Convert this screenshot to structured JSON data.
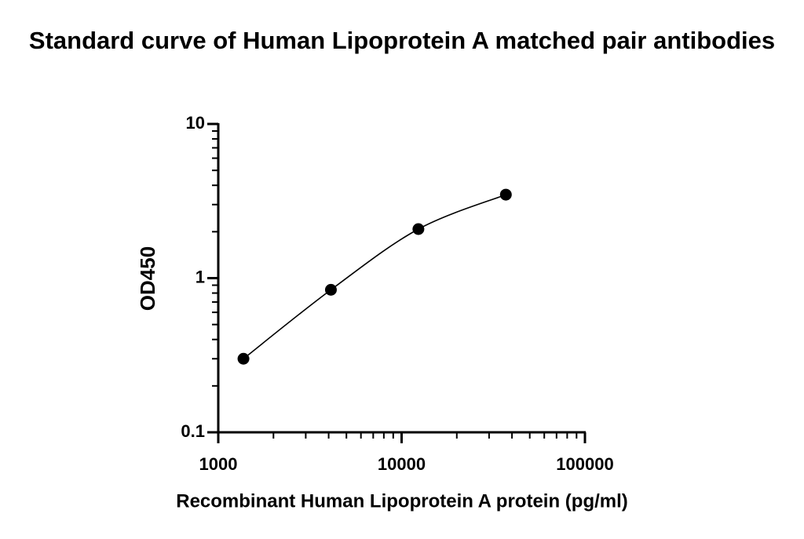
{
  "chart_data": {
    "type": "scatter",
    "title": "Standard curve of Human Lipoprotein A matched pair antibodies",
    "x_label": "Recombinant Human Lipoprotein A protein (pg/ml)",
    "y_label": "OD450",
    "x": [
      1372,
      4115,
      12346,
      37037
    ],
    "values": [
      0.3,
      0.84,
      2.08,
      3.48
    ],
    "color": "#000000",
    "xscale": "log",
    "yscale": "log",
    "xlim": [
      1000,
      100000
    ],
    "xticks": [
      1000,
      10000,
      100000
    ],
    "ylim": [
      0.1,
      10
    ],
    "yticks": [
      0.1,
      1,
      10
    ],
    "fit_curve": true
  }
}
